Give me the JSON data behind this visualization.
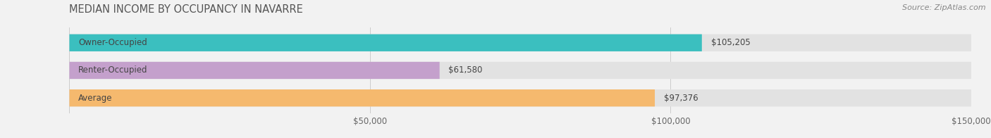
{
  "title": "MEDIAN INCOME BY OCCUPANCY IN NAVARRE",
  "source": "Source: ZipAtlas.com",
  "categories": [
    "Owner-Occupied",
    "Renter-Occupied",
    "Average"
  ],
  "values": [
    105205,
    61580,
    97376
  ],
  "labels": [
    "$105,205",
    "$61,580",
    "$97,376"
  ],
  "bar_colors": [
    "#3bbfbf",
    "#c4a0cc",
    "#f5b96e"
  ],
  "bg_color": "#f2f2f2",
  "bar_bg_color": "#e2e2e2",
  "xlim": [
    0,
    150000
  ],
  "xticks": [
    50000,
    100000,
    150000
  ],
  "xtick_labels": [
    "$50,000",
    "$100,000",
    "$150,000"
  ],
  "title_fontsize": 10.5,
  "source_fontsize": 8,
  "label_fontsize": 8.5,
  "tick_fontsize": 8.5,
  "bar_height": 0.62
}
